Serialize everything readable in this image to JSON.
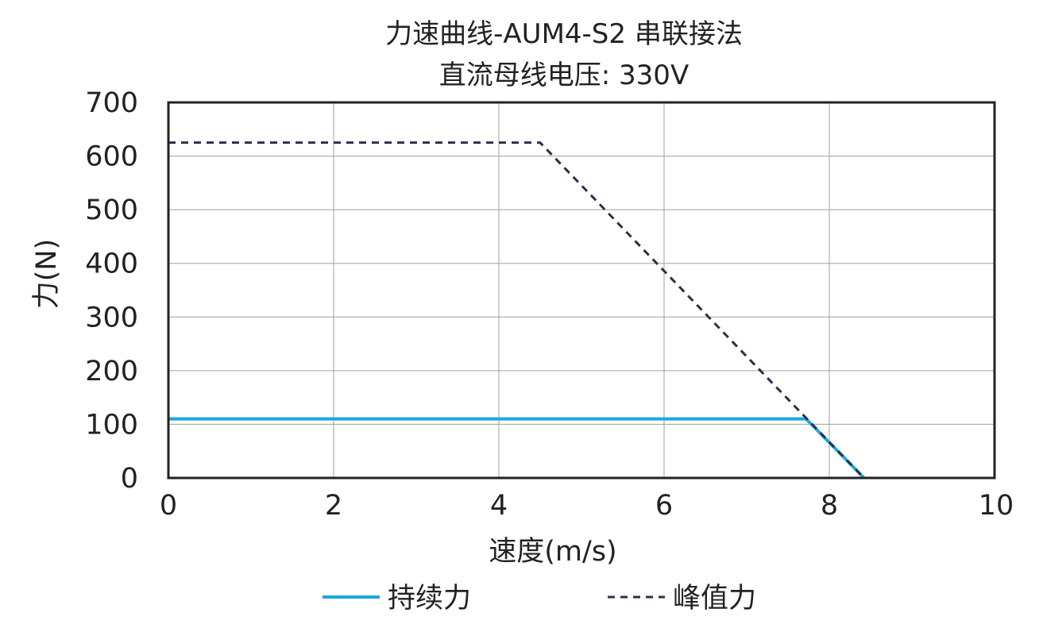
{
  "chart_data": {
    "type": "line",
    "title": "力速曲线-AUM4-S2 串联接法",
    "subtitle": "直流母线电压: 330V",
    "xlabel": "速度(m/s)",
    "ylabel": "力(N)",
    "xlim": [
      0,
      10
    ],
    "ylim": [
      0,
      700
    ],
    "xticks": [
      "0",
      "2",
      "4",
      "6",
      "8",
      "10"
    ],
    "yticks": [
      "0",
      "100",
      "200",
      "300",
      "400",
      "500",
      "600",
      "700"
    ],
    "grid": true,
    "legend_position": "bottom",
    "series": [
      {
        "name": "持续力",
        "color": "#1aa7df",
        "style": "solid",
        "points": [
          [
            0,
            110
          ],
          [
            7.72,
            110
          ],
          [
            8.42,
            0
          ]
        ]
      },
      {
        "name": "峰值力",
        "color": "#2c2f4d",
        "style": "dashed",
        "points": [
          [
            0,
            625
          ],
          [
            4.5,
            625
          ],
          [
            8.42,
            0
          ]
        ]
      }
    ]
  }
}
